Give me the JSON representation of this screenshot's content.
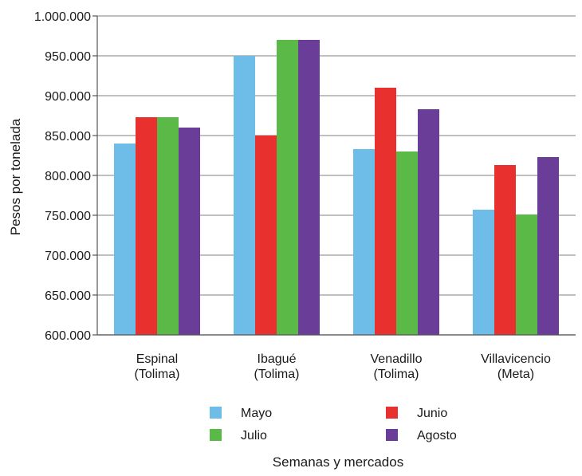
{
  "chart_data": {
    "type": "bar",
    "ylabel": "Pesos por tonelada",
    "xlabel": "Semanas y mercados",
    "ylim": [
      600000,
      1000000
    ],
    "yticks": [
      "600.000",
      "650.000",
      "700.000",
      "750.000",
      "800.000",
      "850.000",
      "900.000",
      "950.000",
      "1.000.000"
    ],
    "ytick_values": [
      600000,
      650000,
      700000,
      750000,
      800000,
      850000,
      900000,
      950000,
      1000000
    ],
    "grid": true,
    "legend_position": "bottom",
    "categories": [
      {
        "line1": "Espinal",
        "line2": "(Tolima)"
      },
      {
        "line1": "Ibagué",
        "line2": "(Tolima)"
      },
      {
        "line1": "Venadillo",
        "line2": "(Tolima)"
      },
      {
        "line1": "Villavicencio",
        "line2": "(Meta)"
      }
    ],
    "series": [
      {
        "name": "Mayo",
        "color": "#6ebde8",
        "values": [
          840000,
          950000,
          833000,
          757000
        ]
      },
      {
        "name": "Junio",
        "color": "#e8302e",
        "values": [
          873000,
          850000,
          910000,
          813000
        ]
      },
      {
        "name": "Julio",
        "color": "#5bb947",
        "values": [
          873000,
          970000,
          830000,
          751000
        ]
      },
      {
        "name": "Agosto",
        "color": "#6a3e98",
        "values": [
          860000,
          970000,
          883000,
          823000
        ]
      }
    ]
  }
}
